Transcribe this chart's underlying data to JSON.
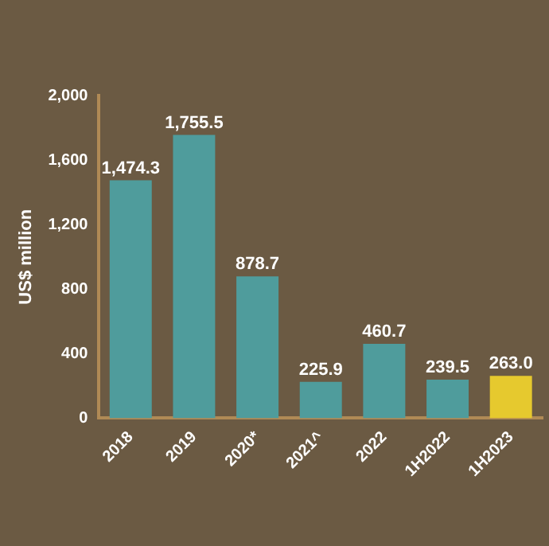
{
  "chart_data": {
    "type": "bar",
    "ylabel": "US$ million",
    "categories": [
      "2018",
      "2019",
      "2020*",
      "2021^",
      "2022",
      "1H2022",
      "1H2023"
    ],
    "values": [
      1474.3,
      1755.5,
      878.7,
      225.9,
      460.7,
      239.5,
      263.0
    ],
    "colors": [
      "#4f9c9c",
      "#4f9c9c",
      "#4f9c9c",
      "#4f9c9c",
      "#4f9c9c",
      "#4f9c9c",
      "#e6c92e"
    ],
    "value_labels": [
      "1,474.3",
      "1,755.5",
      "878.7",
      "225.9",
      "460.7",
      "239.5",
      "263.0"
    ],
    "ylim": [
      0,
      2000
    ],
    "yticks": [
      {
        "value": 0,
        "label": "0"
      },
      {
        "value": 400,
        "label": "400"
      },
      {
        "value": 800,
        "label": "800"
      },
      {
        "value": 1200,
        "label": "1,200"
      },
      {
        "value": 1600,
        "label": "1,600"
      },
      {
        "value": 2000,
        "label": "2,000"
      }
    ],
    "grid": false,
    "legend": false
  }
}
